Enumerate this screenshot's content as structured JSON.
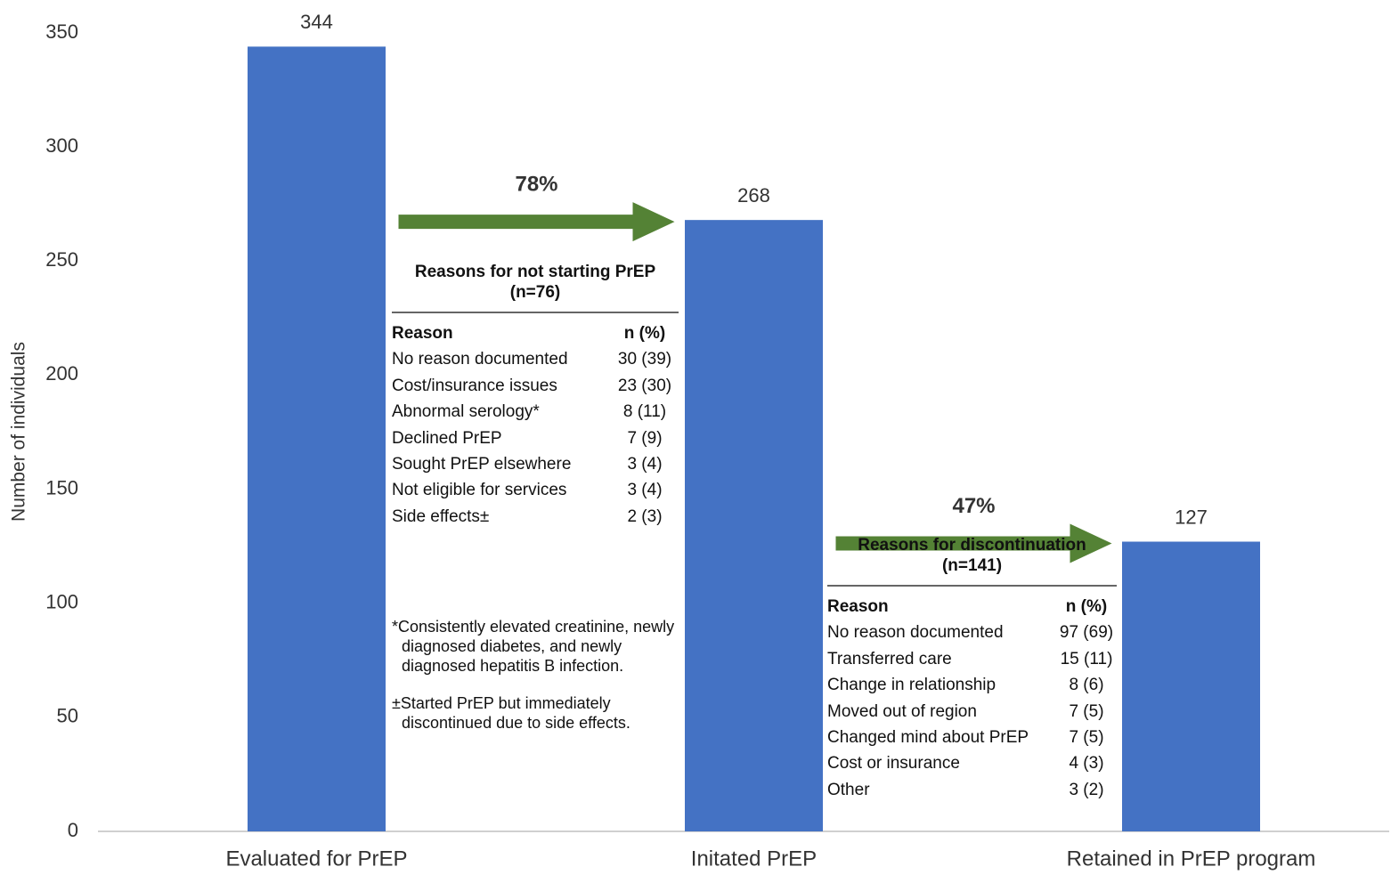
{
  "chart_data": {
    "type": "bar",
    "categories": [
      "Evaluated for PrEP",
      "Initated PrEP",
      "Retained in PrEP program"
    ],
    "values": [
      344,
      268,
      127
    ],
    "color": "#4472c4",
    "ylabel": "Number of individuals",
    "ylim": [
      0,
      350
    ],
    "yticks": [
      0,
      50,
      100,
      150,
      200,
      250,
      300,
      350
    ],
    "grid": false,
    "annotations": [
      {
        "label": "78%",
        "color": "#548235"
      },
      {
        "label": "47%",
        "color": "#548235"
      }
    ],
    "tables": [
      {
        "title": "Reasons for not starting PrEP",
        "subtitle": "(n=76)",
        "columns": [
          "Reason",
          "n (%)"
        ],
        "rows": [
          [
            "No reason documented",
            "30 (39)"
          ],
          [
            "Cost/insurance issues",
            "23 (30)"
          ],
          [
            "Abnormal serology*",
            "8 (11)"
          ],
          [
            "Declined PrEP",
            "7 (9)"
          ],
          [
            "Sought PrEP elsewhere",
            "3 (4)"
          ],
          [
            "Not eligible for services",
            "3 (4)"
          ],
          [
            "Side effects±",
            "2 (3)"
          ]
        ],
        "notes": [
          "*Consistently elevated creatinine, newly diagnosed diabetes, and newly diagnosed hepatitis B infection.",
          "±Started PrEP but immediately discontinued due to side effects."
        ]
      },
      {
        "title": "Reasons for discontinuation",
        "subtitle": "(n=141)",
        "columns": [
          "Reason",
          "n (%)"
        ],
        "rows": [
          [
            "No reason documented",
            "97 (69)"
          ],
          [
            "Transferred care",
            "15 (11)"
          ],
          [
            "Change in relationship",
            "8 (6)"
          ],
          [
            "Moved out of region",
            "7 (5)"
          ],
          [
            "Changed mind about PrEP",
            "7 (5)"
          ],
          [
            "Cost or insurance",
            "4 (3)"
          ],
          [
            "Other",
            "3 (2)"
          ]
        ],
        "notes": []
      }
    ]
  }
}
